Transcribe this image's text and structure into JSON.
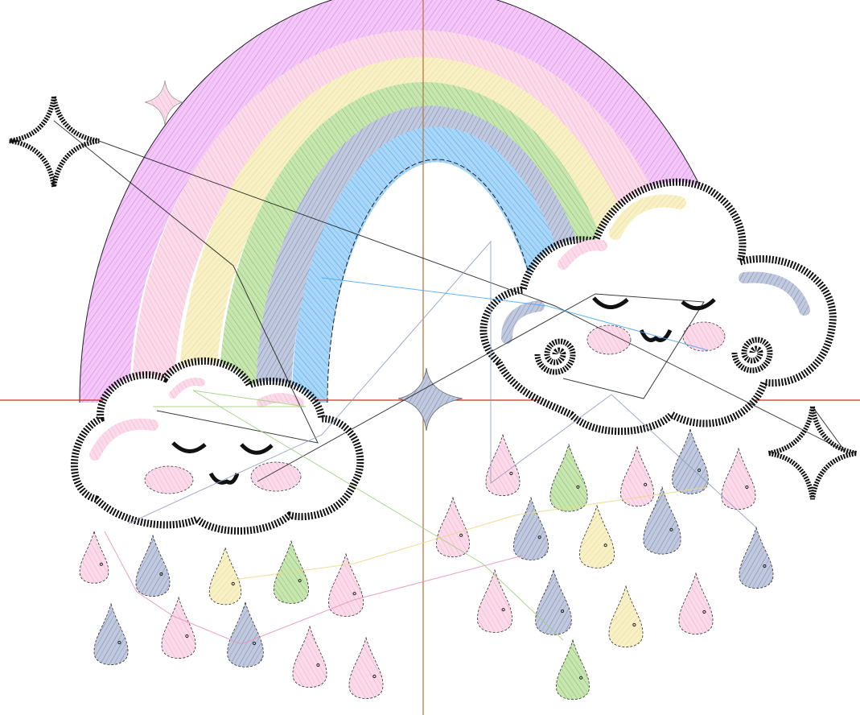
{
  "design": {
    "colors": {
      "violet": "#e99bf3",
      "pink": "#f6bcd6",
      "yellow": "#f2e7a9",
      "green": "#9dce7b",
      "slate": "#8f9cbe",
      "blue": "#62b3f2",
      "outline": "#111111",
      "axis_horizontal": "#d62a1e",
      "axis_vertical": "#b87b3a",
      "jump_line": "#1a1a1a"
    },
    "rainbow_bands": [
      "violet",
      "pink",
      "yellow",
      "green",
      "slate",
      "blue"
    ],
    "icons": [
      "sparkle-icon",
      "cloud-icon",
      "raindrop-icon",
      "eyelash-icon",
      "swirl-icon"
    ]
  }
}
